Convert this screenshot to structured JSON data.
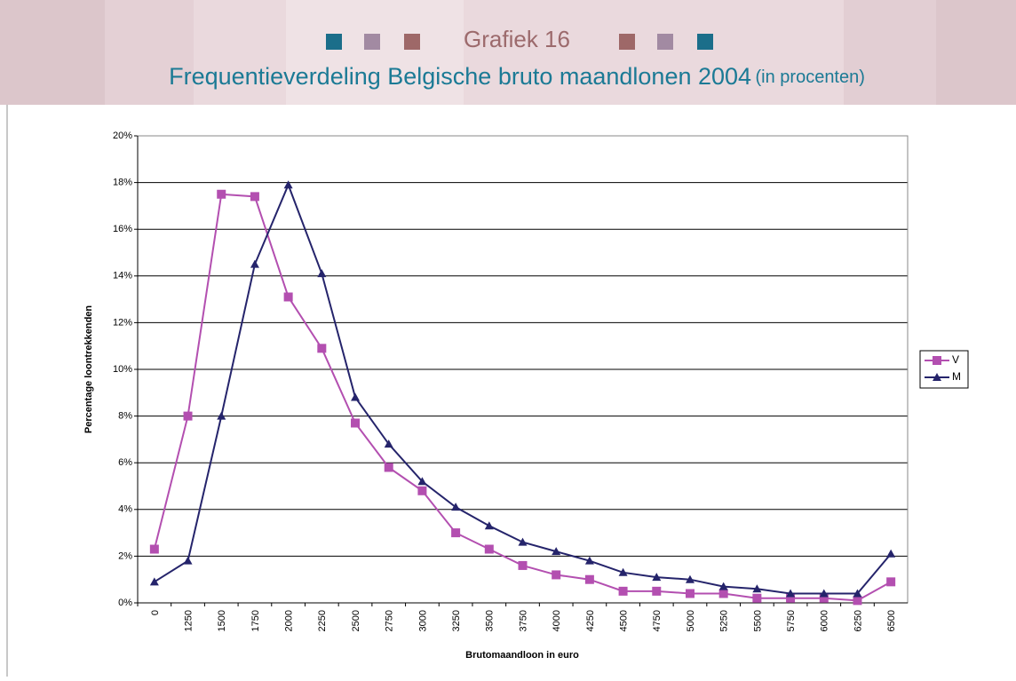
{
  "chart_data": {
    "type": "line",
    "title": "Grafiek 16",
    "subtitle": "Frequentieverdeling Belgische bruto maandlonen 2004",
    "subtitle_note": "(in procenten)",
    "x_label": "Brutomaandloon in euro",
    "y_label": "Percentage loontrekkenden",
    "categories": [
      "0",
      "1250",
      "1500",
      "1750",
      "2000",
      "2250",
      "2500",
      "2750",
      "3000",
      "3250",
      "3500",
      "3750",
      "4000",
      "4250",
      "4500",
      "4750",
      "5000",
      "5250",
      "5500",
      "5750",
      "6000",
      "6250",
      "6500"
    ],
    "series": [
      {
        "name": "V",
        "color": "#b34fb0",
        "marker": "square",
        "values": [
          2.3,
          8.0,
          17.5,
          17.4,
          13.1,
          10.9,
          7.7,
          5.8,
          4.8,
          3.0,
          2.3,
          1.6,
          1.2,
          1.0,
          0.5,
          0.5,
          0.4,
          0.4,
          0.2,
          0.2,
          0.2,
          0.1,
          0.9
        ]
      },
      {
        "name": "M",
        "color": "#25246b",
        "marker": "triangle",
        "values": [
          0.9,
          1.8,
          8.0,
          14.5,
          17.9,
          14.1,
          8.8,
          6.8,
          5.2,
          4.1,
          3.3,
          2.6,
          2.2,
          1.8,
          1.3,
          1.1,
          1.0,
          0.7,
          0.6,
          0.4,
          0.4,
          0.4,
          2.1
        ]
      }
    ],
    "ylim": [
      0,
      20
    ],
    "yticks": [
      {
        "value": 0,
        "label": "0%"
      },
      {
        "value": 2,
        "label": "2%"
      },
      {
        "value": 4,
        "label": "4%"
      },
      {
        "value": 6,
        "label": "6%"
      },
      {
        "value": 8,
        "label": "8%"
      },
      {
        "value": 10,
        "label": "10%"
      },
      {
        "value": 12,
        "label": "12%"
      },
      {
        "value": 14,
        "label": "14%"
      },
      {
        "value": 16,
        "label": "16%"
      },
      {
        "value": 18,
        "label": "18%"
      },
      {
        "value": 20,
        "label": "20%"
      }
    ],
    "grid": true,
    "legend": "right"
  }
}
